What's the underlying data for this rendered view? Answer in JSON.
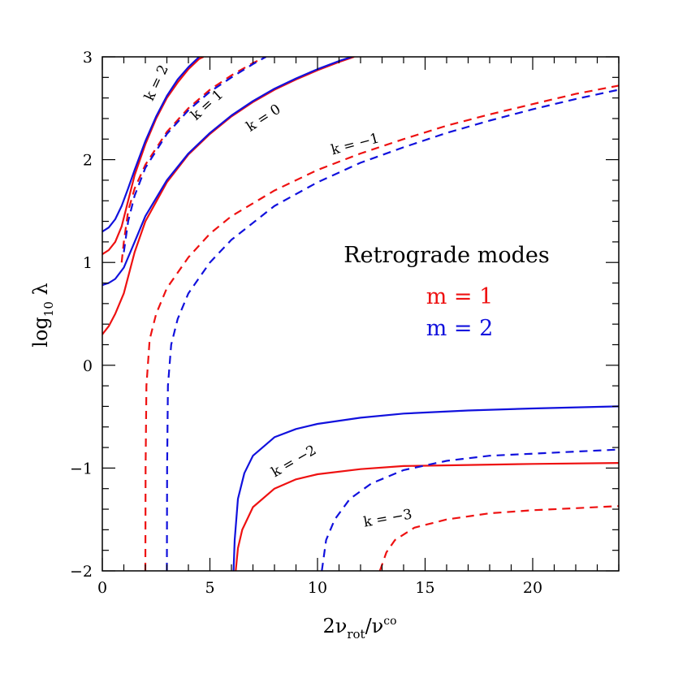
{
  "chart_data": {
    "type": "line",
    "xlabel": {
      "base": "2ν",
      "sub": "rot",
      "mid": "/ν",
      "sup": "co"
    },
    "ylabel": {
      "base": "log",
      "sub": "10",
      "tail": " λ"
    },
    "xlim": [
      0,
      24
    ],
    "ylim": [
      -2,
      3
    ],
    "x_major_ticks": [
      0,
      5,
      10,
      15,
      20
    ],
    "x_tick_labels": [
      "0",
      "5",
      "10",
      "15",
      "20"
    ],
    "y_major_ticks": [
      -2,
      -1,
      0,
      1,
      2,
      3
    ],
    "y_tick_labels": [
      "−2",
      "−1",
      "0",
      "1",
      "2",
      "3"
    ],
    "grid": false,
    "legend": {
      "title": "Retrograde modes",
      "entries": [
        {
          "label": "m = 1",
          "color": "#ee1111"
        },
        {
          "label": "m = 2",
          "color": "#1111dd"
        }
      ]
    },
    "colors": {
      "m1": "#ee1111",
      "m2": "#1111dd"
    },
    "series": [
      {
        "k": 2,
        "m": 1,
        "style": "solid",
        "color": "#ee1111",
        "points": [
          [
            0,
            1.08
          ],
          [
            0.3,
            1.12
          ],
          [
            0.6,
            1.2
          ],
          [
            0.9,
            1.35
          ],
          [
            1.2,
            1.6
          ],
          [
            1.5,
            1.85
          ],
          [
            2,
            2.15
          ],
          [
            2.5,
            2.4
          ],
          [
            3,
            2.6
          ],
          [
            3.5,
            2.75
          ],
          [
            4,
            2.88
          ],
          [
            4.5,
            2.98
          ],
          [
            4.7,
            3.0
          ]
        ]
      },
      {
        "k": 2,
        "m": 2,
        "style": "solid",
        "color": "#1111dd",
        "points": [
          [
            0,
            1.3
          ],
          [
            0.3,
            1.34
          ],
          [
            0.6,
            1.42
          ],
          [
            0.9,
            1.55
          ],
          [
            1.2,
            1.72
          ],
          [
            1.5,
            1.9
          ],
          [
            2,
            2.18
          ],
          [
            2.5,
            2.42
          ],
          [
            3,
            2.62
          ],
          [
            3.5,
            2.78
          ],
          [
            4,
            2.9
          ],
          [
            4.5,
            3.0
          ]
        ]
      },
      {
        "k": 1,
        "m": 1,
        "style": "dashed",
        "color": "#ee1111",
        "points": [
          [
            0.9,
            1.0
          ],
          [
            1.0,
            1.2
          ],
          [
            1.2,
            1.5
          ],
          [
            1.5,
            1.72
          ],
          [
            2,
            1.95
          ],
          [
            3,
            2.27
          ],
          [
            4,
            2.5
          ],
          [
            5,
            2.68
          ],
          [
            6,
            2.82
          ],
          [
            7,
            2.94
          ],
          [
            7.6,
            3.0
          ]
        ]
      },
      {
        "k": 1,
        "m": 2,
        "style": "dashed",
        "color": "#1111dd",
        "points": [
          [
            1.0,
            1.1
          ],
          [
            1.2,
            1.4
          ],
          [
            1.5,
            1.65
          ],
          [
            2,
            1.92
          ],
          [
            3,
            2.25
          ],
          [
            4,
            2.48
          ],
          [
            5,
            2.66
          ],
          [
            6,
            2.8
          ],
          [
            7,
            2.93
          ],
          [
            7.6,
            3.0
          ]
        ]
      },
      {
        "k": 0,
        "m": 1,
        "style": "solid",
        "color": "#ee1111",
        "points": [
          [
            0,
            0.3
          ],
          [
            0.3,
            0.38
          ],
          [
            0.6,
            0.5
          ],
          [
            1,
            0.7
          ],
          [
            1.5,
            1.1
          ],
          [
            2,
            1.4
          ],
          [
            3,
            1.78
          ],
          [
            4,
            2.05
          ],
          [
            5,
            2.25
          ],
          [
            6,
            2.42
          ],
          [
            7,
            2.56
          ],
          [
            8,
            2.68
          ],
          [
            9,
            2.78
          ],
          [
            10,
            2.87
          ],
          [
            11,
            2.95
          ],
          [
            11.7,
            3.0
          ]
        ]
      },
      {
        "k": 0,
        "m": 2,
        "style": "solid",
        "color": "#1111dd",
        "points": [
          [
            0,
            0.78
          ],
          [
            0.3,
            0.8
          ],
          [
            0.6,
            0.84
          ],
          [
            1,
            0.95
          ],
          [
            1.5,
            1.2
          ],
          [
            2,
            1.45
          ],
          [
            3,
            1.8
          ],
          [
            4,
            2.06
          ],
          [
            5,
            2.26
          ],
          [
            6,
            2.43
          ],
          [
            7,
            2.57
          ],
          [
            8,
            2.69
          ],
          [
            9,
            2.79
          ],
          [
            10,
            2.88
          ],
          [
            11,
            2.96
          ],
          [
            11.6,
            3.0
          ]
        ]
      },
      {
        "k": -1,
        "m": 1,
        "style": "dashed",
        "color": "#ee1111",
        "points": [
          [
            2.0,
            -2.0
          ],
          [
            2.01,
            -1.0
          ],
          [
            2.05,
            -0.2
          ],
          [
            2.2,
            0.25
          ],
          [
            2.5,
            0.5
          ],
          [
            3,
            0.75
          ],
          [
            4,
            1.05
          ],
          [
            5,
            1.28
          ],
          [
            6,
            1.45
          ],
          [
            8,
            1.7
          ],
          [
            10,
            1.9
          ],
          [
            12,
            2.06
          ],
          [
            14,
            2.2
          ],
          [
            16,
            2.33
          ],
          [
            18,
            2.44
          ],
          [
            20,
            2.54
          ],
          [
            22,
            2.64
          ],
          [
            24,
            2.72
          ]
        ]
      },
      {
        "k": -1,
        "m": 2,
        "style": "dashed",
        "color": "#1111dd",
        "points": [
          [
            3.0,
            -2.0
          ],
          [
            3.01,
            -1.0
          ],
          [
            3.05,
            -0.2
          ],
          [
            3.2,
            0.2
          ],
          [
            3.5,
            0.45
          ],
          [
            4,
            0.7
          ],
          [
            5,
            1.0
          ],
          [
            6,
            1.22
          ],
          [
            8,
            1.55
          ],
          [
            10,
            1.78
          ],
          [
            12,
            1.97
          ],
          [
            14,
            2.12
          ],
          [
            16,
            2.26
          ],
          [
            18,
            2.38
          ],
          [
            20,
            2.49
          ],
          [
            22,
            2.59
          ],
          [
            24,
            2.68
          ]
        ]
      },
      {
        "k": -2,
        "m": 1,
        "style": "solid",
        "color": "#ee1111",
        "points": [
          [
            6.2,
            -2.0
          ],
          [
            6.3,
            -1.78
          ],
          [
            6.5,
            -1.6
          ],
          [
            7,
            -1.38
          ],
          [
            8,
            -1.2
          ],
          [
            9,
            -1.11
          ],
          [
            10,
            -1.06
          ],
          [
            12,
            -1.01
          ],
          [
            14,
            -0.98
          ],
          [
            17,
            -0.97
          ],
          [
            20,
            -0.96
          ],
          [
            24,
            -0.95
          ]
        ]
      },
      {
        "k": -2,
        "m": 2,
        "style": "solid",
        "color": "#1111dd",
        "points": [
          [
            6.1,
            -2.0
          ],
          [
            6.15,
            -1.7
          ],
          [
            6.3,
            -1.3
          ],
          [
            6.6,
            -1.05
          ],
          [
            7,
            -0.88
          ],
          [
            8,
            -0.7
          ],
          [
            9,
            -0.62
          ],
          [
            10,
            -0.57
          ],
          [
            12,
            -0.51
          ],
          [
            14,
            -0.47
          ],
          [
            17,
            -0.44
          ],
          [
            20,
            -0.42
          ],
          [
            24,
            -0.4
          ]
        ]
      },
      {
        "k": -3,
        "m": 1,
        "style": "dashed",
        "color": "#ee1111",
        "points": [
          [
            12.9,
            -2.0
          ],
          [
            13.2,
            -1.82
          ],
          [
            13.6,
            -1.7
          ],
          [
            14.5,
            -1.58
          ],
          [
            16,
            -1.5
          ],
          [
            18,
            -1.44
          ],
          [
            20,
            -1.41
          ],
          [
            22,
            -1.39
          ],
          [
            24,
            -1.37
          ]
        ]
      },
      {
        "k": -3,
        "m": 2,
        "style": "dashed",
        "color": "#1111dd",
        "points": [
          [
            10.2,
            -2.0
          ],
          [
            10.4,
            -1.7
          ],
          [
            10.8,
            -1.5
          ],
          [
            11.5,
            -1.3
          ],
          [
            12.5,
            -1.15
          ],
          [
            14,
            -1.02
          ],
          [
            16,
            -0.93
          ],
          [
            18,
            -0.88
          ],
          [
            20,
            -0.86
          ],
          [
            22,
            -0.84
          ],
          [
            24,
            -0.82
          ]
        ]
      }
    ],
    "annotations": [
      {
        "text": "k = 2",
        "x": 2.7,
        "y": 2.73,
        "angle": -65
      },
      {
        "text": "k = 1",
        "x": 5.0,
        "y": 2.5,
        "angle": -42
      },
      {
        "text": "k = 0",
        "x": 7.6,
        "y": 2.37,
        "angle": -33
      },
      {
        "text": "k = −1",
        "x": 11.8,
        "y": 2.11,
        "angle": -15
      },
      {
        "text": "k = −2",
        "x": 9.0,
        "y": -0.97,
        "angle": -30
      },
      {
        "text": "k = −3",
        "x": 13.3,
        "y": -1.53,
        "angle": -10
      }
    ]
  }
}
